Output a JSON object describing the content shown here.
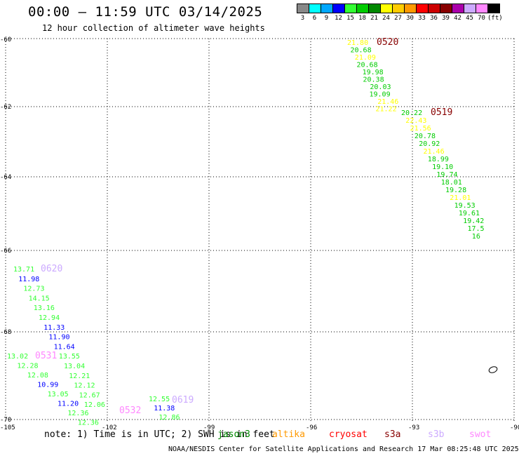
{
  "header": {
    "title": "00:00 – 11:59 UTC 03/14/2025",
    "subtitle": "12 hour collection of altimeter wave heights"
  },
  "legend": {
    "unit": "(ft)",
    "swatches": [
      {
        "color": "#888888",
        "label": "3"
      },
      {
        "color": "#00ffff",
        "label": "6"
      },
      {
        "color": "#00a8ff",
        "label": "9"
      },
      {
        "color": "#0000ff",
        "label": "12"
      },
      {
        "color": "#33ff33",
        "label": "15"
      },
      {
        "color": "#00cc00",
        "label": "18"
      },
      {
        "color": "#008800",
        "label": "21"
      },
      {
        "color": "#ffff00",
        "label": "24"
      },
      {
        "color": "#ffcc00",
        "label": "27"
      },
      {
        "color": "#ff9900",
        "label": "30"
      },
      {
        "color": "#ff0000",
        "label": "33"
      },
      {
        "color": "#cc0000",
        "label": "36"
      },
      {
        "color": "#880000",
        "label": "39"
      },
      {
        "color": "#aa00aa",
        "label": "42"
      },
      {
        "color": "#ccaaff",
        "label": "45"
      },
      {
        "color": "#ff88ff",
        "label": "70"
      },
      {
        "color": "#000000",
        "label": ""
      }
    ]
  },
  "axes": {
    "lon_labels": [
      "-105",
      "-102",
      "-99",
      "-96",
      "-93",
      "-90"
    ],
    "lat_labels": [
      "-60",
      "-62",
      "-64",
      "-66",
      "-68",
      "-70"
    ]
  },
  "tracks": [
    {
      "id": "0520",
      "id_color": "#880000",
      "readings": [
        {
          "v": "21.80",
          "c": "#ffff00"
        },
        {
          "v": "20.68",
          "c": "#00cc00"
        },
        {
          "v": "21.09",
          "c": "#ffff00"
        },
        {
          "v": "20.68",
          "c": "#00cc00"
        },
        {
          "v": "19.98",
          "c": "#00cc00"
        },
        {
          "v": "20.38",
          "c": "#00cc00"
        },
        {
          "v": "20.03",
          "c": "#00cc00"
        },
        {
          "v": "19.09",
          "c": "#00cc00"
        },
        {
          "v": "21.46",
          "c": "#ffff00"
        },
        {
          "v": "21.22",
          "c": "#ffff00"
        }
      ]
    },
    {
      "id": "0519",
      "id_color": "#880000",
      "readings": [
        {
          "v": "20.22",
          "c": "#00cc00"
        },
        {
          "v": "22.43",
          "c": "#ffff00"
        },
        {
          "v": "21.56",
          "c": "#ffff00"
        },
        {
          "v": "20.78",
          "c": "#00cc00"
        },
        {
          "v": "20.92",
          "c": "#00cc00"
        },
        {
          "v": "21.46",
          "c": "#ffff00"
        },
        {
          "v": "18.99",
          "c": "#00cc00"
        },
        {
          "v": "19.10",
          "c": "#00cc00"
        },
        {
          "v": "19.74",
          "c": "#00cc00"
        },
        {
          "v": "18.01",
          "c": "#00cc00"
        },
        {
          "v": "19.28",
          "c": "#00cc00"
        },
        {
          "v": "21.01",
          "c": "#ffff00"
        },
        {
          "v": "19.53",
          "c": "#00cc00"
        },
        {
          "v": "19.61",
          "c": "#00cc00"
        },
        {
          "v": "19.42",
          "c": "#00cc00"
        },
        {
          "v": "17.5",
          "c": "#00cc00"
        },
        {
          "v": "16",
          "c": "#00cc00"
        }
      ]
    },
    {
      "id": "0620",
      "id_color": "#ccaaff",
      "readings": [
        {
          "v": "13.71",
          "c": "#33ff33"
        },
        {
          "v": "11.98",
          "c": "#0000ff"
        },
        {
          "v": "12.73",
          "c": "#33ff33"
        },
        {
          "v": "14.15",
          "c": "#33ff33"
        },
        {
          "v": "13.16",
          "c": "#33ff33"
        },
        {
          "v": "12.94",
          "c": "#33ff33"
        },
        {
          "v": "11.33",
          "c": "#0000ff"
        },
        {
          "v": "11.90",
          "c": "#0000ff"
        },
        {
          "v": "11.64",
          "c": "#0000ff"
        },
        {
          "v": "13.55",
          "c": "#33ff33"
        },
        {
          "v": "13.04",
          "c": "#33ff33"
        },
        {
          "v": "12.21",
          "c": "#33ff33"
        },
        {
          "v": "12.12",
          "c": "#33ff33"
        },
        {
          "v": "12.67",
          "c": "#33ff33"
        },
        {
          "v": "12.06",
          "c": "#33ff33"
        }
      ]
    },
    {
      "id": "0531",
      "id_color": "#ff88ff",
      "readings": [
        {
          "v": "13.02",
          "c": "#33ff33"
        },
        {
          "v": "12.28",
          "c": "#33ff33"
        },
        {
          "v": "12.08",
          "c": "#33ff33"
        },
        {
          "v": "10.99",
          "c": "#0000ff"
        },
        {
          "v": "13.05",
          "c": "#33ff33"
        },
        {
          "v": "11.20",
          "c": "#0000ff"
        },
        {
          "v": "12.36",
          "c": "#33ff33"
        },
        {
          "v": "12.36",
          "c": "#33ff33"
        }
      ]
    },
    {
      "id": "0532",
      "id_color": "#ff88ff",
      "readings": []
    },
    {
      "id": "0619",
      "id_color": "#ccaaff",
      "readings": [
        {
          "v": "12.55",
          "c": "#33ff33"
        },
        {
          "v": "11.38",
          "c": "#0000ff"
        },
        {
          "v": "12.86",
          "c": "#33ff33"
        }
      ]
    }
  ],
  "footer": {
    "note": "note: 1) Time is in UTC; 2) SWH is in feet",
    "satellites": [
      {
        "name": "jason3",
        "color": "#008800"
      },
      {
        "name": "altika",
        "color": "#ff9900"
      },
      {
        "name": "cryosat",
        "color": "#ff0000"
      },
      {
        "name": "s3a",
        "color": "#880000"
      },
      {
        "name": "s3b",
        "color": "#ccaaff"
      },
      {
        "name": "swot",
        "color": "#ff88ff"
      }
    ],
    "credit": "NOAA/NESDIS Center for Satellite Applications and Research    17 Mar 08:25:48 UTC 2025"
  }
}
